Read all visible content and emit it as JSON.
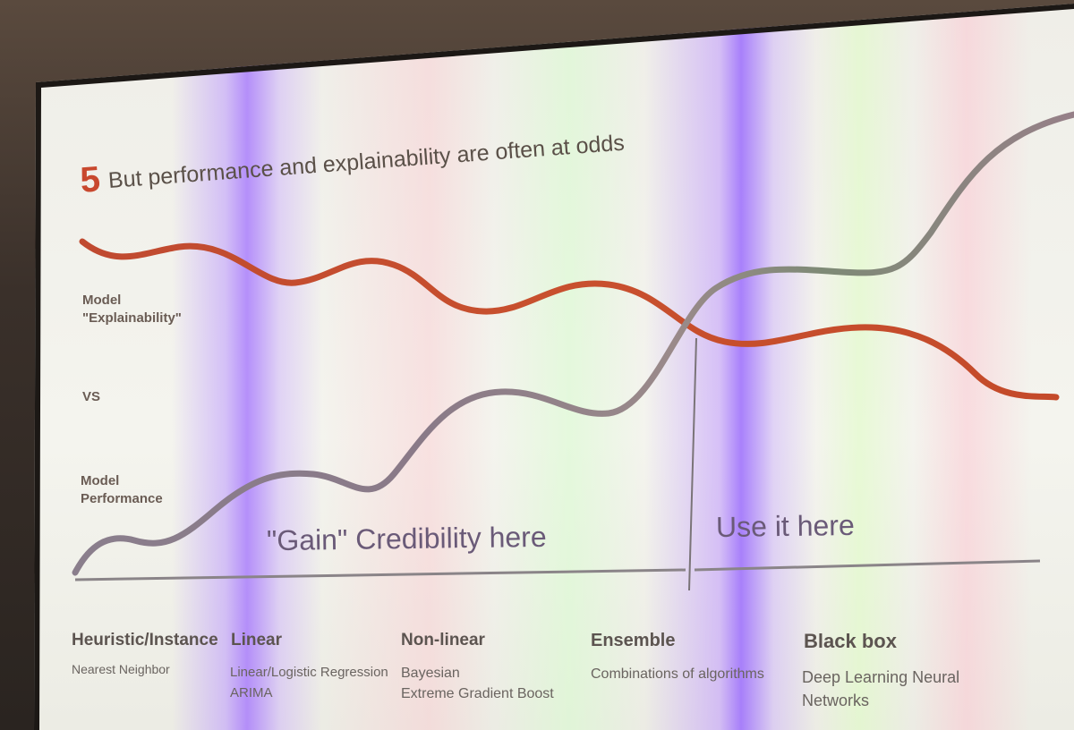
{
  "slide": {
    "number": "5",
    "title": "But performance and explainability are often at odds"
  },
  "labels": {
    "explainability": [
      "Model",
      "\"Explainability\""
    ],
    "vs": "VS",
    "performance": [
      "Model",
      "Performance"
    ]
  },
  "regions": {
    "left": "\"Gain\" Credibility here",
    "right": "Use it here"
  },
  "categories": [
    {
      "title": "Heuristic/Instance",
      "items": [
        "Nearest Neighbor"
      ]
    },
    {
      "title": "Linear",
      "items": [
        "Linear/Logistic Regression",
        "ARIMA"
      ]
    },
    {
      "title": "Non-linear",
      "items": [
        "Bayesian",
        "Extreme Gradient Boost"
      ]
    },
    {
      "title": "Ensemble",
      "items": [
        "Combinations of algorithms"
      ]
    },
    {
      "title": "Black box",
      "items": [
        "Deep Learning Neural",
        "Networks"
      ]
    }
  ],
  "colors": {
    "explainability_curve": "#c4482c",
    "performance_curve": "#8e8088",
    "axis": "#8a8488",
    "title_number": "#c8482e"
  }
}
